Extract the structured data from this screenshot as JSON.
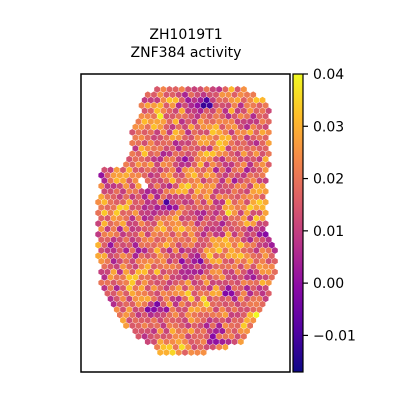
{
  "chart_data": {
    "type": "heatmap",
    "subtype": "spatial-hexbin",
    "title": "ZH1019T1",
    "subtitle": "ZNF384 activity",
    "xlabel": "",
    "ylabel": "",
    "grid": false,
    "colormap": "plasma",
    "colorbar": {
      "range": [
        -0.017,
        0.04
      ],
      "ticks": [
        -0.01,
        0.0,
        0.01,
        0.02,
        0.03,
        0.04
      ],
      "tick_labels": [
        "−0.01",
        "0.00",
        "0.01",
        "0.02",
        "0.03",
        "0.04"
      ]
    },
    "color_stops": [
      "#0d0887",
      "#5302a3",
      "#8b0aa5",
      "#b83289",
      "#db5c68",
      "#f48849",
      "#febd2a",
      "#f0f921"
    ],
    "value_range": [
      -0.017,
      0.04
    ],
    "typical_value": 0.018,
    "low_spots": [
      [
        0.58,
        0.06
      ],
      [
        0.62,
        0.07
      ],
      [
        0.55,
        0.64
      ],
      [
        0.72,
        0.76
      ],
      [
        0.41,
        0.44
      ],
      [
        0.33,
        0.82
      ],
      [
        0.3,
        0.47
      ]
    ],
    "high_spots": [
      [
        0.12,
        0.34
      ],
      [
        0.88,
        0.18
      ],
      [
        0.57,
        0.25
      ],
      [
        0.73,
        0.46
      ],
      [
        0.46,
        0.18
      ],
      [
        0.88,
        0.85
      ]
    ],
    "missing_spots": [
      [
        0.26,
        0.36
      ]
    ]
  }
}
